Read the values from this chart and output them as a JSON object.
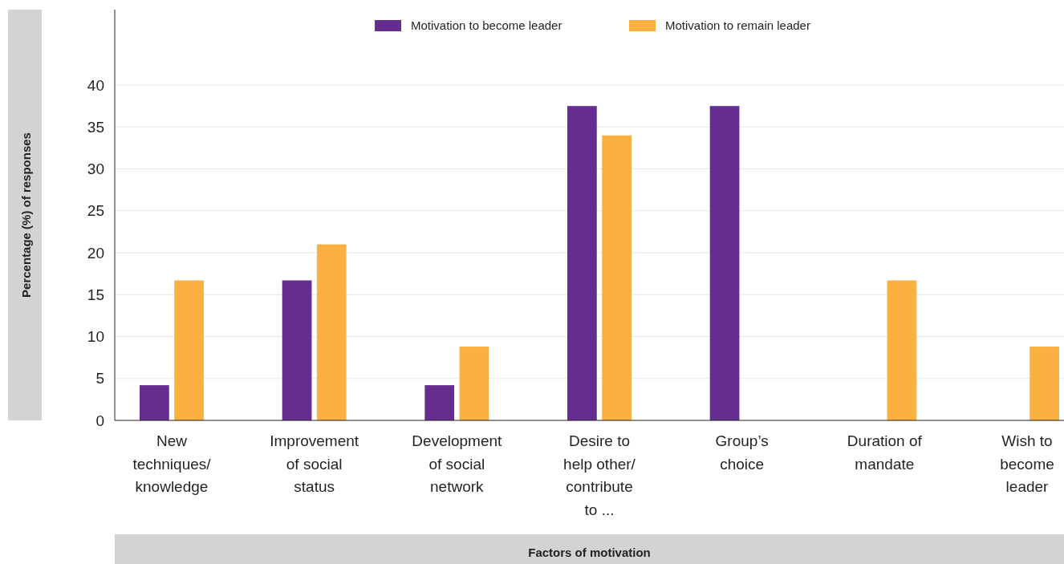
{
  "chart_data": {
    "type": "bar",
    "xlabel": "Factors of motivation",
    "ylabel": "Percentage (%) of responses",
    "categories": [
      "New techniques/ knowledge",
      "Improvement of social status",
      "Development of social network",
      "Desire to help other/ contribute to ...",
      "Group’s choice",
      "Duration of mandate",
      "Wish to become leader"
    ],
    "series": [
      {
        "name": "Motivation to become leader",
        "color": "#662d91",
        "values": [
          4.2,
          16.7,
          4.2,
          37.5,
          37.5,
          null,
          null
        ]
      },
      {
        "name": "Motivation to remain leader",
        "color": "#fbb040",
        "values": [
          16.7,
          21,
          8.8,
          34,
          null,
          16.7,
          8.8
        ]
      }
    ],
    "ylim": [
      0,
      49
    ],
    "yticks": [
      0,
      5,
      10,
      15,
      20,
      25,
      30,
      35,
      40
    ],
    "grid": "y",
    "legend": "top"
  }
}
